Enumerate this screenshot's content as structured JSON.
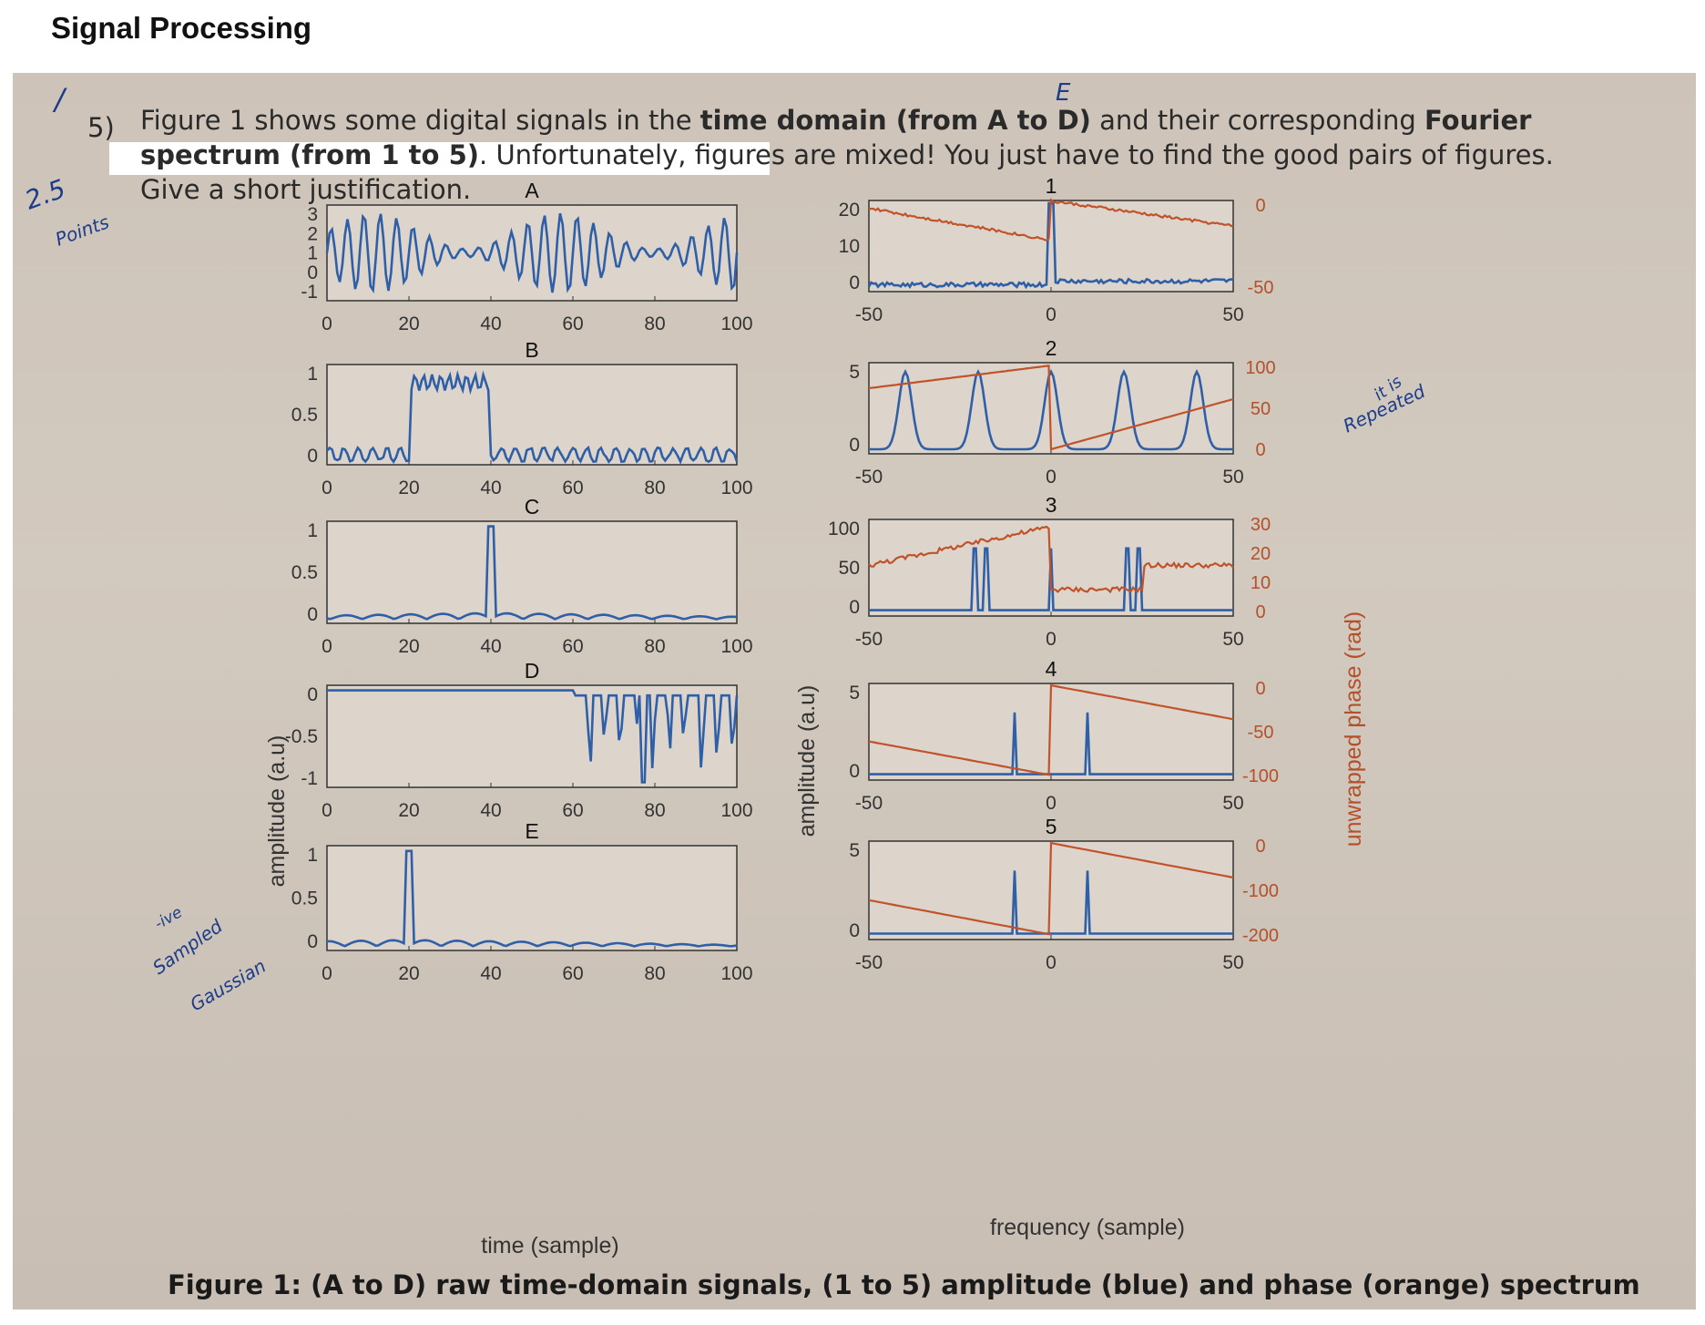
{
  "header": {
    "title": "Signal Processing"
  },
  "question": {
    "number": "5)",
    "line1_a": "Figure 1 shows some digital signals in the ",
    "line1_b": "time domain (from A to D)",
    "line1_c": " and their corresponding ",
    "line1_d": "Fourier",
    "line2_a": "spectrum (from 1 to 5)",
    "line2_b": ". Unfortunately, figures are mixed! You just have to find the good pairs of figures.",
    "line3": "Give a short justification."
  },
  "annotations": {
    "margin_mark": "/",
    "points": "2.5",
    "points_word": "Points",
    "correction_letter": "E",
    "repeated_note": "it is",
    "repeated_word": "Repeated",
    "sampled_note": "-ive",
    "sampled_word": "Sampled",
    "gaussian_word": "Gaussian"
  },
  "figure": {
    "caption_a": "Figure 1: ",
    "caption_b": "(A to D) raw time-domain signals, (1 to 5) amplitude (blue) and phase (orange) spectrum",
    "time_xlabel": "time (sample)",
    "time_ylabel": "amplitude (a.u)",
    "freq_xlabel": "frequency (sample)",
    "freq_ylabel": "amplitude (a.u)",
    "phase_ylabel": "unwrapped phase (rad)",
    "colors": {
      "amplitude": "#2f5fa6",
      "phase": "#c0532a"
    }
  },
  "chart_data": [
    {
      "type": "line",
      "title": "A",
      "xticks": [
        "0",
        "20",
        "40",
        "60",
        "80",
        "100"
      ],
      "yticks": [
        "3",
        "2",
        "1",
        "0",
        "-1"
      ],
      "xlim": [
        0,
        100
      ],
      "ylim": [
        -1,
        3
      ],
      "series": [
        {
          "kind": "sum-of-sines",
          "x_range": [
            0,
            100
          ],
          "y_range": [
            -1,
            3
          ]
        }
      ]
    },
    {
      "type": "line",
      "title": "B",
      "xticks": [
        "0",
        "20",
        "40",
        "60",
        "80",
        "100"
      ],
      "yticks": [
        "1",
        "0.5",
        "0"
      ],
      "xlim": [
        0,
        100
      ],
      "ylim": [
        -0.1,
        1.1
      ],
      "series": [
        {
          "kind": "rectangular-pulse-with-noise",
          "pulse_start": 20,
          "pulse_end": 40,
          "level": 0.9
        }
      ]
    },
    {
      "type": "line",
      "title": "C",
      "xticks": [
        "0",
        "20",
        "40",
        "60",
        "80",
        "100"
      ],
      "yticks": [
        "1",
        "0.5",
        "0"
      ],
      "xlim": [
        0,
        100
      ],
      "ylim": [
        0,
        1
      ],
      "series": [
        {
          "kind": "impulse",
          "peak_x": 40,
          "peak_y": 0.95
        }
      ]
    },
    {
      "type": "line",
      "title": "D",
      "xticks": [
        "0",
        "20",
        "40",
        "60",
        "80",
        "100"
      ],
      "yticks": [
        "0",
        "-0.5",
        "-1"
      ],
      "xlim": [
        0,
        100
      ],
      "ylim": [
        -1,
        0
      ],
      "series": [
        {
          "kind": "negative-spikes",
          "x_range": [
            60,
            100
          ],
          "min": -0.95
        }
      ]
    },
    {
      "type": "line",
      "title": "E",
      "xticks": [
        "0",
        "20",
        "40",
        "60",
        "80",
        "100"
      ],
      "yticks": [
        "1",
        "0.5",
        "0"
      ],
      "xlim": [
        0,
        100
      ],
      "ylim": [
        0,
        1
      ],
      "series": [
        {
          "kind": "impulse",
          "peak_x": 20,
          "peak_y": 0.95
        }
      ]
    },
    {
      "type": "line",
      "title": "1",
      "xticks": [
        "-50",
        "0",
        "50"
      ],
      "yticks": [
        "20",
        "10",
        "0"
      ],
      "yticks_right": [
        "0",
        "-50"
      ],
      "xlim": [
        -50,
        50
      ],
      "ylim": [
        0,
        20
      ],
      "series": [
        {
          "name": "amplitude",
          "kind": "peak",
          "peak_x": 0,
          "peak_y": 20
        },
        {
          "name": "phase",
          "kind": "noisy-descending"
        }
      ]
    },
    {
      "type": "line",
      "title": "2",
      "xticks": [
        "-50",
        "0",
        "50"
      ],
      "yticks": [
        "5",
        "0"
      ],
      "yticks_right": [
        "100",
        "50",
        "0"
      ],
      "xlim": [
        -50,
        50
      ],
      "ylim": [
        0,
        5
      ],
      "series": [
        {
          "name": "amplitude",
          "kind": "periodic-peaks",
          "peaks_x": [
            -40,
            -20,
            0,
            20,
            40
          ],
          "peak_y": 4.5
        },
        {
          "name": "phase",
          "kind": "rising-with-reset"
        }
      ]
    },
    {
      "type": "line",
      "title": "3",
      "xticks": [
        "-50",
        "0",
        "50"
      ],
      "yticks": [
        "100",
        "50",
        "0"
      ],
      "yticks_right": [
        "30",
        "20",
        "10",
        "0"
      ],
      "xlim": [
        -50,
        50
      ],
      "ylim": [
        0,
        100
      ],
      "series": [
        {
          "name": "amplitude",
          "kind": "spikes",
          "spikes_x": [
            -21,
            -18,
            0,
            21,
            24
          ]
        },
        {
          "name": "phase",
          "kind": "step-noisy"
        }
      ]
    },
    {
      "type": "line",
      "title": "4",
      "xticks": [
        "-50",
        "0",
        "50"
      ],
      "yticks": [
        "5",
        "0"
      ],
      "yticks_right": [
        "0",
        "-50",
        "-100"
      ],
      "xlim": [
        -50,
        50
      ],
      "ylim": [
        0,
        5
      ],
      "series": [
        {
          "name": "amplitude",
          "kind": "spikes",
          "spikes_x": [
            -10,
            10
          ]
        },
        {
          "name": "phase",
          "kind": "linear-sawtooth"
        }
      ]
    },
    {
      "type": "line",
      "title": "5",
      "xticks": [
        "-50",
        "0",
        "50"
      ],
      "yticks": [
        "5",
        "0"
      ],
      "yticks_right": [
        "0",
        "-100",
        "-200"
      ],
      "xlim": [
        -50,
        50
      ],
      "ylim": [
        0,
        5
      ],
      "series": [
        {
          "name": "amplitude",
          "kind": "spikes",
          "spikes_x": [
            -10,
            10
          ]
        },
        {
          "name": "phase",
          "kind": "linear-sawtooth"
        }
      ]
    }
  ]
}
